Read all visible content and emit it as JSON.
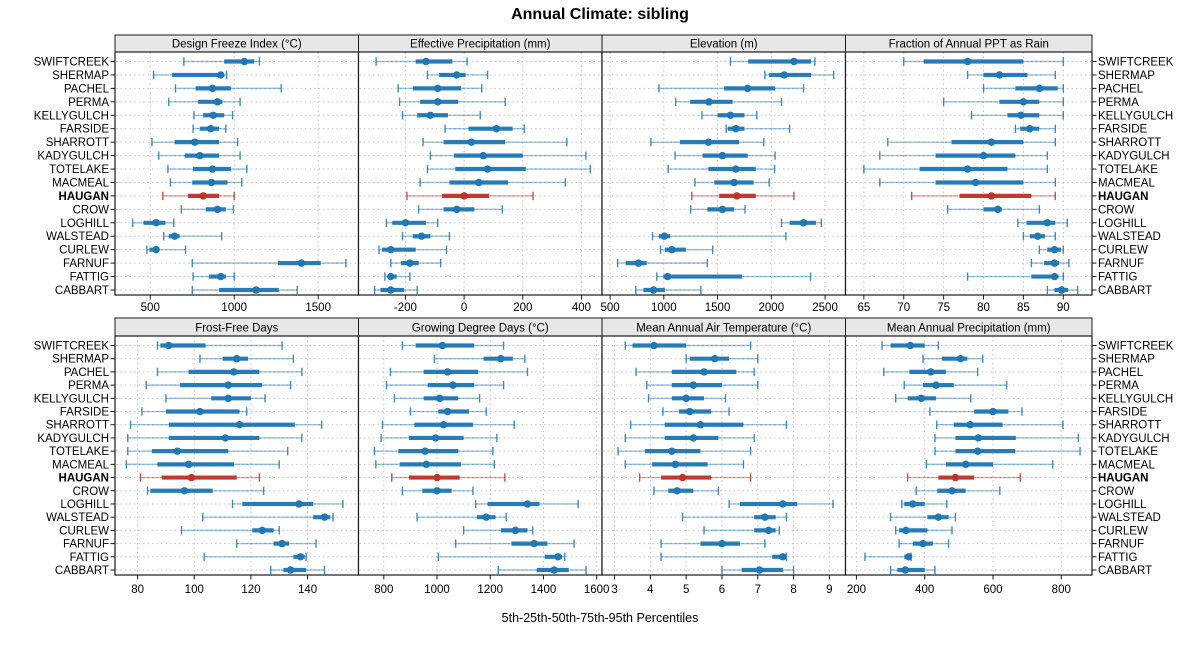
{
  "title": "Annual Climate: sibling",
  "caption": "5th-25th-50th-75th-95th Percentiles",
  "colors": {
    "series_blue": "#1F77B4",
    "highlight_red": "#C03128",
    "strip_bg": "#E7E7E7",
    "grid": "#C2C2C2",
    "border": "#1A1A1A"
  },
  "chart_data": {
    "type": "dotplot-percentiles",
    "percentiles": [
      5,
      25,
      50,
      75,
      95
    ],
    "legend_note": "5th-25th-50th-75th-95th Percentiles",
    "sites": [
      "SWIFTCREEK",
      "SHERMAP",
      "PACHEL",
      "PERMA",
      "KELLYGULCH",
      "FARSIDE",
      "SHARROTT",
      "KADYGULCH",
      "TOTELAKE",
      "MACMEAL",
      "HAUGAN",
      "CROW",
      "LOGHILL",
      "WALSTEAD",
      "CURLEW",
      "FARNUF",
      "FATTIG",
      "CABBART"
    ],
    "highlight_site": "HAUGAN",
    "layout": {
      "rows": 2,
      "cols": 4,
      "grid": "dotted",
      "y_labels": "both-sides"
    },
    "panels": [
      {
        "title": "Design Freeze Index (°C)",
        "row": 0,
        "col": 0,
        "xlim": [
          290,
          1740
        ],
        "ticks": [
          500,
          1000,
          1500
        ],
        "values": [
          [
            700,
            940,
            1060,
            1120,
            1150
          ],
          [
            520,
            630,
            920,
            940,
            955
          ],
          [
            650,
            770,
            870,
            980,
            1280
          ],
          [
            610,
            785,
            900,
            930,
            1035
          ],
          [
            760,
            815,
            875,
            940,
            990
          ],
          [
            755,
            795,
            860,
            910,
            950
          ],
          [
            510,
            645,
            765,
            910,
            1020
          ],
          [
            550,
            705,
            795,
            910,
            1035
          ],
          [
            605,
            755,
            870,
            980,
            1075
          ],
          [
            620,
            750,
            865,
            960,
            1045
          ],
          [
            575,
            725,
            815,
            910,
            1000
          ],
          [
            685,
            830,
            900,
            950,
            995
          ],
          [
            395,
            460,
            535,
            590,
            640
          ],
          [
            580,
            610,
            645,
            675,
            925
          ],
          [
            480,
            495,
            535,
            555,
            710
          ],
          [
            750,
            1260,
            1400,
            1515,
            1665
          ],
          [
            755,
            850,
            920,
            950,
            1000
          ],
          [
            750,
            910,
            1130,
            1265,
            1375
          ]
        ]
      },
      {
        "title": "Effective Precipitation (mm)",
        "row": 0,
        "col": 1,
        "xlim": [
          -360,
          470
        ],
        "ticks": [
          -200,
          0,
          200,
          400
        ],
        "values": [
          [
            -300,
            -165,
            -130,
            -40,
            10
          ],
          [
            -125,
            -85,
            -25,
            5,
            80
          ],
          [
            -225,
            -175,
            -90,
            -10,
            60
          ],
          [
            -220,
            -150,
            -90,
            -20,
            140
          ],
          [
            -210,
            -160,
            -115,
            -55,
            55
          ],
          [
            -65,
            15,
            110,
            165,
            205
          ],
          [
            -140,
            -70,
            25,
            140,
            350
          ],
          [
            -115,
            -35,
            65,
            200,
            415
          ],
          [
            -125,
            -30,
            80,
            210,
            430
          ],
          [
            -150,
            -50,
            50,
            150,
            345
          ],
          [
            -195,
            -75,
            0,
            85,
            235
          ],
          [
            -155,
            -70,
            -25,
            35,
            130
          ],
          [
            -265,
            -245,
            -200,
            -130,
            -90
          ],
          [
            -210,
            -175,
            -145,
            -115,
            -50
          ],
          [
            -290,
            -280,
            -250,
            -165,
            -60
          ],
          [
            -250,
            -215,
            -185,
            -155,
            -80
          ],
          [
            -270,
            -260,
            -250,
            -230,
            -185
          ],
          [
            -305,
            -285,
            -250,
            -205,
            -160
          ]
        ]
      },
      {
        "title": "Elevation (m)",
        "row": 0,
        "col": 2,
        "xlim": [
          425,
          2690
        ],
        "ticks": [
          500,
          1000,
          1500,
          2000,
          2500
        ],
        "values": [
          [
            1620,
            1785,
            2210,
            2370,
            2405
          ],
          [
            1940,
            1980,
            2120,
            2370,
            2580
          ],
          [
            955,
            1560,
            1780,
            2035,
            2300
          ],
          [
            1110,
            1245,
            1420,
            1640,
            2095
          ],
          [
            1355,
            1500,
            1620,
            1750,
            1865
          ],
          [
            1580,
            1595,
            1670,
            1750,
            2170
          ],
          [
            880,
            1150,
            1415,
            1700,
            1930
          ],
          [
            1105,
            1360,
            1545,
            1780,
            2035
          ],
          [
            1040,
            1415,
            1670,
            1855,
            2030
          ],
          [
            1290,
            1470,
            1655,
            1835,
            1980
          ],
          [
            1260,
            1515,
            1680,
            1855,
            2210
          ],
          [
            1250,
            1405,
            1545,
            1655,
            1755
          ],
          [
            2095,
            2170,
            2300,
            2415,
            2465
          ],
          [
            895,
            955,
            1005,
            1060,
            2135
          ],
          [
            970,
            1010,
            1075,
            1205,
            1455
          ],
          [
            570,
            645,
            765,
            840,
            1405
          ],
          [
            935,
            995,
            1035,
            1730,
            2365
          ],
          [
            740,
            810,
            905,
            1010,
            1345
          ]
        ]
      },
      {
        "title": "Fraction of Annual PPT as Rain",
        "row": 0,
        "col": 3,
        "xlim": [
          62.7,
          93.6
        ],
        "ticks": [
          65,
          70,
          75,
          80,
          85,
          90
        ],
        "values": [
          [
            70,
            72.5,
            78,
            85,
            90
          ],
          [
            78,
            80,
            82,
            85.5,
            89
          ],
          [
            80,
            84,
            87,
            89.3,
            90
          ],
          [
            75,
            82,
            85,
            87,
            90
          ],
          [
            78.5,
            83,
            84.7,
            87,
            90
          ],
          [
            84,
            84.6,
            85.8,
            87,
            89
          ],
          [
            68,
            76,
            81,
            85,
            89
          ],
          [
            67,
            74,
            80,
            84,
            88
          ],
          [
            65,
            72,
            78,
            83,
            88
          ],
          [
            67,
            74,
            79,
            85,
            89
          ],
          [
            71,
            77,
            81,
            86,
            89
          ],
          [
            75.5,
            80,
            81.8,
            82.3,
            87
          ],
          [
            84.3,
            85.4,
            88,
            89,
            90.5
          ],
          [
            85,
            85.8,
            86.8,
            87.7,
            89
          ],
          [
            87,
            88,
            88.9,
            89.7,
            90
          ],
          [
            86,
            87.6,
            88.9,
            89.5,
            90.7
          ],
          [
            78,
            86,
            88.9,
            89.4,
            90
          ],
          [
            88,
            88.9,
            89.8,
            90.6,
            91.8
          ]
        ]
      },
      {
        "title": "Frost-Free Days",
        "row": 1,
        "col": 0,
        "xlim": [
          72,
          158
        ],
        "ticks": [
          80,
          100,
          120,
          140
        ],
        "values": [
          [
            87,
            88,
            91,
            104,
            131
          ],
          [
            102,
            110,
            115,
            119,
            135
          ],
          [
            87,
            98,
            114,
            123,
            138
          ],
          [
            83,
            95,
            112,
            124,
            134
          ],
          [
            90,
            106,
            112,
            120,
            125
          ],
          [
            81.5,
            90,
            102,
            116,
            118.5
          ],
          [
            77.5,
            91,
            116,
            135.5,
            145
          ],
          [
            76.5,
            91,
            111,
            123,
            138
          ],
          [
            76.5,
            85,
            94,
            112,
            133
          ],
          [
            76,
            87,
            98,
            114,
            130
          ],
          [
            81,
            88.5,
            99,
            115,
            123
          ],
          [
            83.5,
            84.5,
            96.5,
            106.5,
            124.5
          ],
          [
            113.5,
            117,
            137,
            142,
            152.5
          ],
          [
            103,
            142,
            146,
            148,
            149
          ],
          [
            95.5,
            120.5,
            124,
            128,
            130
          ],
          [
            115,
            128,
            131,
            133.5,
            143
          ],
          [
            103.5,
            135,
            137.5,
            139,
            139.5
          ],
          [
            127,
            131.5,
            134,
            139.5,
            146
          ]
        ]
      },
      {
        "title": "Growing Degree Days (°C)",
        "row": 1,
        "col": 1,
        "xlim": [
          705,
          1620
        ],
        "ticks": [
          800,
          1000,
          1200,
          1400,
          1600
        ],
        "values": [
          [
            870,
            920,
            1020,
            1140,
            1250
          ],
          [
            990,
            1175,
            1240,
            1285,
            1330
          ],
          [
            825,
            950,
            1040,
            1155,
            1340
          ],
          [
            810,
            965,
            1060,
            1140,
            1250
          ],
          [
            840,
            950,
            1010,
            1080,
            1160
          ],
          [
            900,
            1005,
            1040,
            1120,
            1185
          ],
          [
            795,
            915,
            1025,
            1135,
            1290
          ],
          [
            790,
            895,
            995,
            1100,
            1225
          ],
          [
            765,
            855,
            955,
            1080,
            1210
          ],
          [
            770,
            860,
            960,
            1090,
            1215
          ],
          [
            830,
            895,
            1000,
            1085,
            1255
          ],
          [
            870,
            945,
            1000,
            1055,
            1135
          ],
          [
            1145,
            1190,
            1340,
            1385,
            1530
          ],
          [
            925,
            1150,
            1185,
            1220,
            1260
          ],
          [
            1100,
            1240,
            1295,
            1340,
            1360
          ],
          [
            1070,
            1280,
            1365,
            1415,
            1515
          ],
          [
            1005,
            1405,
            1455,
            1470,
            1480
          ],
          [
            1230,
            1375,
            1440,
            1495,
            1560
          ]
        ]
      },
      {
        "title": "Mean Annual Air Temperature (°C)",
        "row": 1,
        "col": 2,
        "xlim": [
          2.65,
          9.45
        ],
        "ticks": [
          3,
          4,
          5,
          6,
          7,
          8,
          9
        ],
        "values": [
          [
            3.3,
            3.5,
            4.1,
            5.0,
            6.8
          ],
          [
            5.0,
            5.1,
            5.8,
            6.2,
            7.0
          ],
          [
            3.6,
            4.6,
            5.5,
            6.4,
            6.9
          ],
          [
            3.9,
            4.6,
            5.2,
            6.0,
            7.0
          ],
          [
            3.95,
            4.6,
            5.0,
            5.5,
            6.1
          ],
          [
            4.35,
            4.8,
            5.1,
            5.7,
            6.2
          ],
          [
            3.45,
            4.4,
            5.4,
            6.6,
            7.8
          ],
          [
            3.3,
            4.4,
            5.2,
            5.9,
            6.9
          ],
          [
            3.1,
            3.85,
            4.6,
            5.4,
            6.8
          ],
          [
            3.3,
            4.05,
            4.7,
            5.6,
            6.6
          ],
          [
            3.7,
            4.3,
            4.9,
            5.7,
            6.8
          ],
          [
            4.1,
            4.5,
            4.75,
            5.2,
            5.9
          ],
          [
            6.2,
            6.5,
            7.7,
            8.1,
            9.1
          ],
          [
            4.9,
            6.9,
            7.2,
            7.5,
            7.8
          ],
          [
            5.5,
            6.9,
            7.3,
            7.5,
            7.6
          ],
          [
            4.3,
            5.4,
            6.0,
            6.5,
            7.2
          ],
          [
            4.3,
            7.4,
            7.7,
            7.75,
            7.8
          ],
          [
            6.0,
            6.55,
            7.05,
            7.7,
            8.0
          ]
        ]
      },
      {
        "title": "Mean Annual Precipitation (mm)",
        "row": 1,
        "col": 3,
        "xlim": [
          168,
          890
        ],
        "ticks": [
          200,
          400,
          600,
          800
        ],
        "values": [
          [
            275,
            300,
            358,
            400,
            440
          ],
          [
            395,
            450,
            505,
            525,
            570
          ],
          [
            280,
            355,
            418,
            462,
            555
          ],
          [
            340,
            395,
            433,
            485,
            640
          ],
          [
            315,
            350,
            390,
            433,
            535
          ],
          [
            415,
            545,
            600,
            645,
            685
          ],
          [
            435,
            485,
            533,
            628,
            805
          ],
          [
            430,
            490,
            557,
            667,
            850
          ],
          [
            430,
            490,
            555,
            665,
            855
          ],
          [
            405,
            462,
            520,
            600,
            775
          ],
          [
            350,
            440,
            490,
            545,
            680
          ],
          [
            375,
            437,
            480,
            520,
            620
          ],
          [
            333,
            340,
            365,
            400,
            465
          ],
          [
            300,
            408,
            440,
            470,
            490
          ],
          [
            315,
            325,
            345,
            408,
            480
          ],
          [
            325,
            365,
            395,
            424,
            470
          ],
          [
            225,
            340,
            353,
            358,
            360
          ],
          [
            300,
            320,
            343,
            400,
            430
          ]
        ]
      }
    ]
  }
}
